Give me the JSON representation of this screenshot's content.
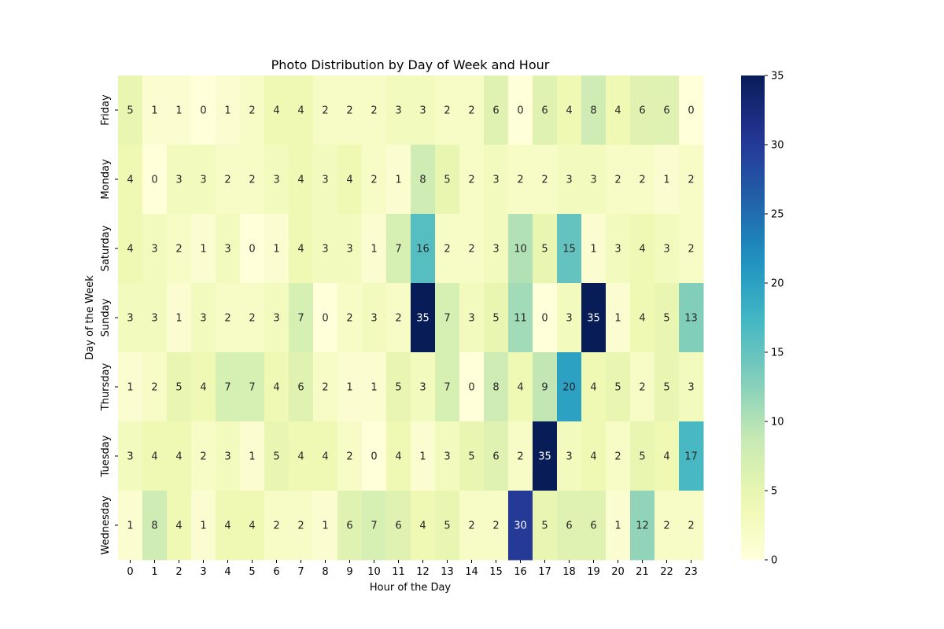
{
  "chart_data": {
    "type": "heatmap",
    "title": "Photo Distribution by Day of Week and Hour",
    "xlabel": "Hour of the Day",
    "ylabel": "Day of the Week",
    "x_categories": [
      "0",
      "1",
      "2",
      "3",
      "4",
      "5",
      "6",
      "7",
      "8",
      "9",
      "10",
      "11",
      "12",
      "13",
      "14",
      "15",
      "16",
      "17",
      "18",
      "19",
      "20",
      "21",
      "22",
      "23"
    ],
    "y_categories": [
      "Friday",
      "Monday",
      "Saturday",
      "Sunday",
      "Thursday",
      "Tuesday",
      "Wednesday"
    ],
    "values": [
      [
        5,
        1,
        1,
        0,
        1,
        2,
        4,
        4,
        2,
        2,
        2,
        3,
        3,
        2,
        2,
        6,
        0,
        6,
        4,
        8,
        4,
        6,
        6,
        0
      ],
      [
        4,
        0,
        3,
        3,
        2,
        2,
        3,
        4,
        3,
        4,
        2,
        1,
        8,
        5,
        2,
        3,
        2,
        2,
        3,
        3,
        2,
        2,
        1,
        2
      ],
      [
        4,
        3,
        2,
        1,
        3,
        0,
        1,
        4,
        3,
        3,
        1,
        7,
        16,
        2,
        2,
        3,
        10,
        5,
        15,
        1,
        3,
        4,
        3,
        2
      ],
      [
        3,
        3,
        1,
        3,
        2,
        2,
        3,
        7,
        0,
        2,
        3,
        2,
        35,
        7,
        3,
        5,
        11,
        0,
        3,
        35,
        1,
        4,
        5,
        13
      ],
      [
        1,
        2,
        5,
        4,
        7,
        7,
        4,
        6,
        2,
        1,
        1,
        5,
        3,
        7,
        0,
        8,
        4,
        9,
        20,
        4,
        5,
        2,
        5,
        3
      ],
      [
        3,
        4,
        4,
        2,
        3,
        1,
        5,
        4,
        4,
        2,
        0,
        4,
        1,
        3,
        5,
        6,
        2,
        35,
        3,
        4,
        2,
        5,
        4,
        17
      ],
      [
        1,
        8,
        4,
        1,
        4,
        4,
        2,
        2,
        1,
        6,
        7,
        6,
        4,
        5,
        2,
        2,
        30,
        5,
        6,
        6,
        1,
        12,
        2,
        2
      ]
    ],
    "colorscale": "YlGnBu",
    "vmin": 0,
    "vmax": 35,
    "colorbar_ticks": [
      0,
      5,
      10,
      15,
      20,
      25,
      30,
      35
    ],
    "annotate": true
  }
}
